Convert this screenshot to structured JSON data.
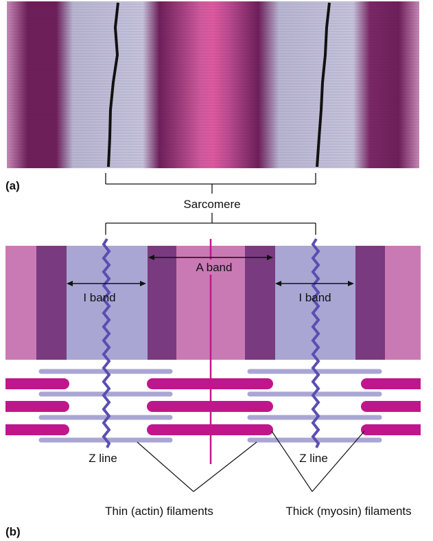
{
  "panel_a": {
    "label": "(a)"
  },
  "panel_b": {
    "label": "(b)"
  },
  "labels": {
    "sarcomere": "Sarcomere",
    "a_band": "A band",
    "i_band_left": "I band",
    "i_band_right": "I band",
    "z_line_left": "Z line",
    "z_line_right": "Z line",
    "thin_filaments": "Thin (actin) filaments",
    "thick_filaments": "Thick (myosin) filaments"
  },
  "colors": {
    "micrograph_light": "#b9b6d2",
    "micrograph_dark": "#6e1f5a",
    "micrograph_pink": "#e05aa0",
    "pink_band": "#c97ab5",
    "dark_band": "#7a3a80",
    "light_band": "#a9a6d4",
    "z_line": "#5a4fb0",
    "thick_filament": "#c0168c",
    "thin_filament": "#a9a6d4",
    "m_line": "#c0168c"
  }
}
